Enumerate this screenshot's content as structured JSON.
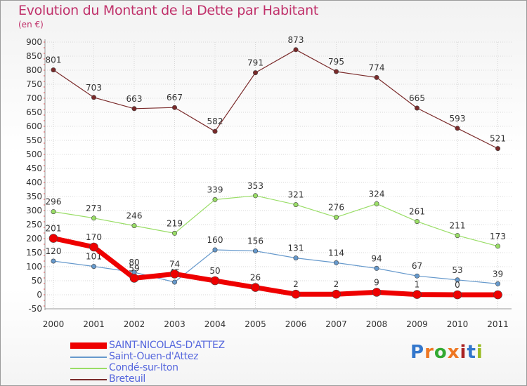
{
  "chart_data": {
    "type": "line",
    "title": "Evolution du Montant de la Dette par Habitant",
    "subtitle": "(en €)",
    "x": [
      "2000",
      "2001",
      "2002",
      "2003",
      "2004",
      "2005",
      "2006",
      "2007",
      "2008",
      "2009",
      "2010",
      "2011"
    ],
    "ylim": [
      -50,
      900
    ],
    "yticks": [
      -50,
      0,
      50,
      100,
      150,
      200,
      250,
      300,
      350,
      400,
      450,
      500,
      550,
      600,
      650,
      700,
      750,
      800,
      850,
      900
    ],
    "grid": true,
    "legend_position": "bottom-left",
    "series": [
      {
        "name": "Breteuil",
        "color": "#7a2a2a",
        "values": [
          801,
          703,
          663,
          667,
          582,
          791,
          873,
          795,
          774,
          665,
          593,
          521
        ],
        "labels": [
          "801",
          "703",
          "663",
          "667",
          "582",
          "791",
          "873",
          "795",
          "774",
          "665",
          "593",
          "521"
        ]
      },
      {
        "name": "Condé-sur-Iton",
        "color": "#99dd66",
        "values": [
          296,
          273,
          246,
          219,
          339,
          353,
          321,
          276,
          324,
          261,
          211,
          173
        ],
        "labels": [
          "296",
          "273",
          "246",
          "219",
          "339",
          "353",
          "321",
          "276",
          "324",
          "261",
          "211",
          "173"
        ]
      },
      {
        "name": "Saint-Ouen-d'Attez",
        "color": "#6699cc",
        "values": [
          120,
          101,
          80,
          45,
          160,
          156,
          131,
          114,
          94,
          67,
          53,
          39
        ],
        "labels": [
          "120",
          "101",
          "80",
          "45",
          "160",
          "156",
          "131",
          "114",
          "94",
          "67",
          "53",
          "39"
        ]
      },
      {
        "name": "SAINT-NICOLAS-D'ATTEZ",
        "color": "#ee0000",
        "values": [
          201,
          170,
          59,
          74,
          50,
          26,
          2,
          2,
          9,
          1,
          0,
          0
        ],
        "labels": [
          "201",
          "170",
          "59",
          "74",
          "50",
          "26",
          "2",
          "2",
          "9",
          "1",
          "0",
          ""
        ]
      }
    ]
  },
  "legend": {
    "items": [
      {
        "label": "SAINT-NICOLAS-D'ATTEZ",
        "color": "#ee0000"
      },
      {
        "label": "Saint-Ouen-d'Attez",
        "color": "#6699cc"
      },
      {
        "label": "Condé-sur-Iton",
        "color": "#99dd66"
      },
      {
        "label": "Breteuil",
        "color": "#7a2a2a"
      }
    ]
  },
  "logo": {
    "text": "Proxiti",
    "colors": [
      "#3377cc",
      "#ee7722",
      "#33aa33",
      "#ee7722",
      "#aa2222",
      "#3377cc",
      "#99bb22"
    ]
  }
}
